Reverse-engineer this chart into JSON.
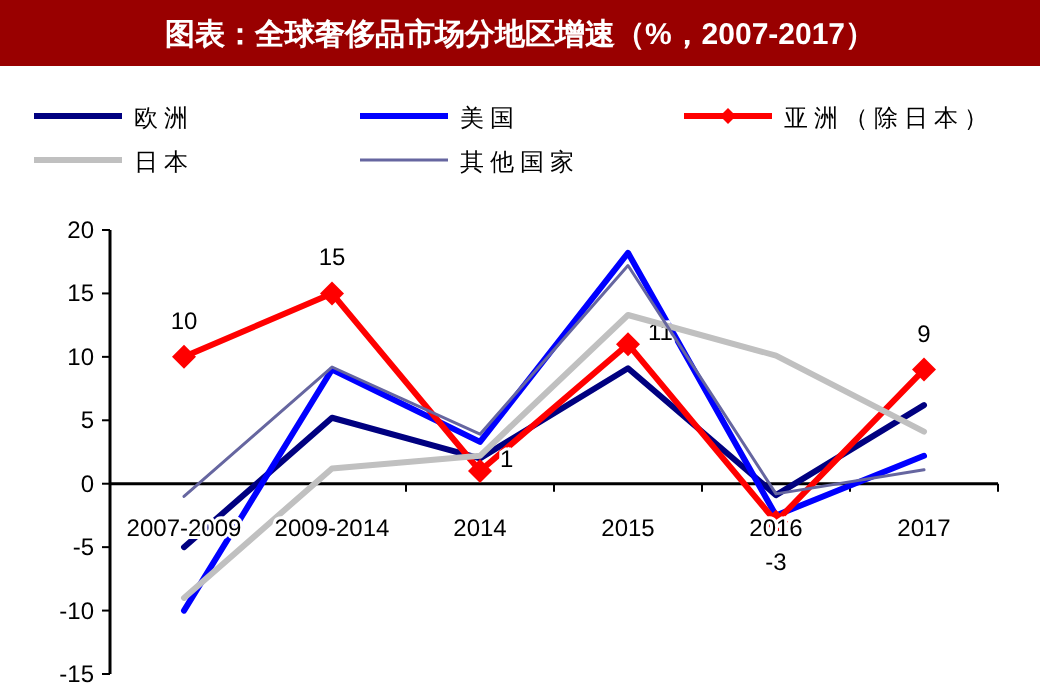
{
  "chart_data": {
    "type": "line",
    "title": "图表：全球奢侈品市场分地区增速（%，2007-2017）",
    "categories": [
      "2007-2009",
      "2009-2014",
      "2014",
      "2015",
      "2016",
      "2017"
    ],
    "series": [
      {
        "name": "欧洲",
        "color": "#000080",
        "values": [
          -5,
          5.2,
          2,
          9.1,
          -0.9,
          6.2
        ]
      },
      {
        "name": "美国",
        "color": "#0000ff",
        "values": [
          -10,
          9,
          3.3,
          18.2,
          -2.5,
          2.2
        ]
      },
      {
        "name": "亚洲（除日本）",
        "color": "#ff0000",
        "marker": "diamond",
        "values": [
          10,
          15,
          1,
          11,
          -3,
          9
        ],
        "value_labels": [
          "10",
          "15",
          "1",
          "11",
          "-3",
          "9"
        ]
      },
      {
        "name": "日本",
        "color": "#c0c0c0",
        "values": [
          -9,
          1.2,
          2.2,
          13.3,
          10.1,
          4.1
        ]
      },
      {
        "name": "其他国家",
        "color": "#6666a0",
        "values": [
          -1,
          9.2,
          3.9,
          17.2,
          -0.8,
          1.1
        ]
      }
    ],
    "ylim": [
      -15,
      20
    ],
    "yticks": [
      -15,
      -10,
      -5,
      0,
      5,
      10,
      15,
      20
    ],
    "grid": false,
    "legend": "top",
    "marker": "none",
    "line_style": "solid"
  }
}
